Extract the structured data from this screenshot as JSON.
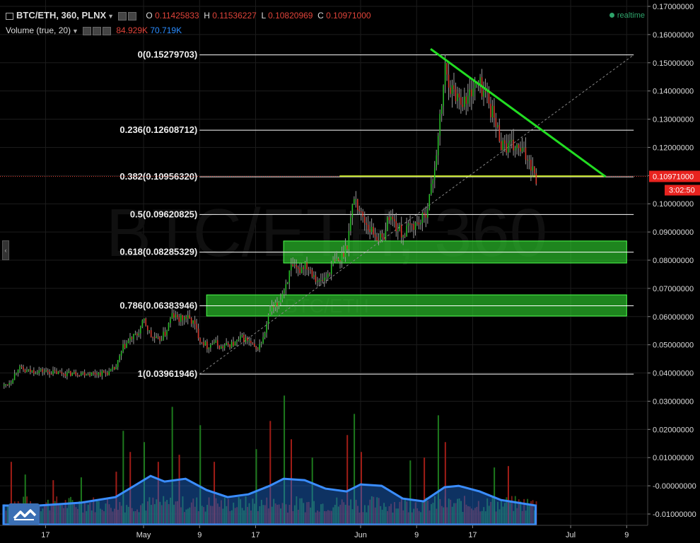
{
  "header": {
    "symbol": "BTC/ETH, 360, PLNX",
    "open_label": "O",
    "open": "0.11425833",
    "high_label": "H",
    "high": "0.11536227",
    "low_label": "L",
    "low": "0.10820969",
    "close_label": "C",
    "close": "0.10971000",
    "volume_label": "Volume (true, 20)",
    "volume_value": "84.929K",
    "volume_ma": "70.719K",
    "realtime": "realtime"
  },
  "watermark": {
    "main": "BTC/ETH, 360",
    "sub": "BTC/ETH"
  },
  "price_badge": {
    "price": "0.10971000",
    "countdown": "3:02:50"
  },
  "colors": {
    "up": "#27c227",
    "down": "#e03b30",
    "fib_line": "#ffffff",
    "trend": "#22dd22",
    "zone": "#2ecc2e",
    "price_line": "#e03b30",
    "volume_area": "#1e6fd9"
  },
  "chart_data": {
    "type": "candlestick",
    "y_axis": {
      "ticks": [
        "0.17000000",
        "0.16000000",
        "0.15000000",
        "0.14000000",
        "0.13000000",
        "0.12000000",
        "0.11000000",
        "0.10000000",
        "0.09000000",
        "0.08000000",
        "0.07000000",
        "0.06000000",
        "0.05000000",
        "0.04000000",
        "0.03000000",
        "0.02000000",
        "0.01000000",
        "-0.00000000",
        "-0.01000000"
      ],
      "range": [
        -0.01,
        0.17
      ]
    },
    "x_axis": {
      "ticks": [
        "17",
        "May",
        "9",
        "17",
        "Jun",
        "9",
        "17",
        "Jul",
        "9"
      ],
      "tick_dates": [
        "2016-04-17",
        "2016-05-01",
        "2016-05-09",
        "2016-05-17",
        "2016-06-01",
        "2016-06-09",
        "2016-06-17",
        "2016-07-01",
        "2016-07-09"
      ],
      "range": [
        "2016-04-11",
        "2016-07-12"
      ]
    },
    "fib_levels": [
      {
        "label": "0(0.15279703)",
        "value": 0.15279703
      },
      {
        "label": "0.236(0.12608712)",
        "value": 0.12608712
      },
      {
        "label": "0.382(0.10956320)",
        "value": 0.1095632
      },
      {
        "label": "0.5(0.09620825)",
        "value": 0.09620825
      },
      {
        "label": "0.618(0.08285329)",
        "value": 0.08285329
      },
      {
        "label": "0.786(0.06383946)",
        "value": 0.06383946
      },
      {
        "label": "1(0.03961946)",
        "value": 0.03961946
      }
    ],
    "fib_span": [
      "2016-05-09",
      "2016-07-10"
    ],
    "diagonal": {
      "from": [
        "2016-05-09",
        0.0396
      ],
      "to": [
        "2016-07-10",
        0.1528
      ]
    },
    "trendline": {
      "from": [
        "2016-06-11",
        0.1549
      ],
      "to": [
        "2016-07-06",
        0.1096
      ]
    },
    "support_line": {
      "from": [
        "2016-05-29",
        0.1098
      ],
      "to": [
        "2016-07-06",
        0.1098
      ]
    },
    "zones": [
      {
        "from": "2016-05-21",
        "to": "2016-07-09",
        "low": 0.079,
        "high": 0.0868
      },
      {
        "from": "2016-05-10",
        "to": "2016-07-09",
        "low": 0.0602,
        "high": 0.0677
      }
    ],
    "price_path": [
      [
        "2016-04-11",
        0.0355
      ],
      [
        "2016-04-12",
        0.0372
      ],
      [
        "2016-04-13",
        0.042
      ],
      [
        "2016-04-14",
        0.0405
      ],
      [
        "2016-04-16",
        0.0408
      ],
      [
        "2016-04-18",
        0.0402
      ],
      [
        "2016-04-20",
        0.0398
      ],
      [
        "2016-04-22",
        0.04
      ],
      [
        "2016-04-24",
        0.0398
      ],
      [
        "2016-04-26",
        0.0402
      ],
      [
        "2016-04-27",
        0.042
      ],
      [
        "2016-04-28",
        0.049
      ],
      [
        "2016-04-29",
        0.052
      ],
      [
        "2016-04-30",
        0.0535
      ],
      [
        "2016-05-01",
        0.0585
      ],
      [
        "2016-05-02",
        0.053
      ],
      [
        "2016-05-03",
        0.0515
      ],
      [
        "2016-05-04",
        0.054
      ],
      [
        "2016-05-05",
        0.0605
      ],
      [
        "2016-05-06",
        0.059
      ],
      [
        "2016-05-07",
        0.0598
      ],
      [
        "2016-05-08",
        0.058
      ],
      [
        "2016-05-09",
        0.052
      ],
      [
        "2016-05-10",
        0.0495
      ],
      [
        "2016-05-11",
        0.051
      ],
      [
        "2016-05-12",
        0.049
      ],
      [
        "2016-05-13",
        0.05
      ],
      [
        "2016-05-14",
        0.0505
      ],
      [
        "2016-05-15",
        0.0525
      ],
      [
        "2016-05-16",
        0.051
      ],
      [
        "2016-05-17",
        0.048
      ],
      [
        "2016-05-18",
        0.052
      ],
      [
        "2016-05-19",
        0.062
      ],
      [
        "2016-05-20",
        0.064
      ],
      [
        "2016-05-21",
        0.07
      ],
      [
        "2016-05-22",
        0.077
      ],
      [
        "2016-05-23",
        0.076
      ],
      [
        "2016-05-24",
        0.079
      ],
      [
        "2016-05-25",
        0.076
      ],
      [
        "2016-05-26",
        0.072
      ],
      [
        "2016-05-27",
        0.074
      ],
      [
        "2016-05-28",
        0.079
      ],
      [
        "2016-05-29",
        0.08
      ],
      [
        "2016-05-30",
        0.086
      ],
      [
        "2016-05-31",
        0.103
      ],
      [
        "2016-06-01",
        0.096
      ],
      [
        "2016-06-02",
        0.092
      ],
      [
        "2016-06-03",
        0.089
      ],
      [
        "2016-06-04",
        0.087
      ],
      [
        "2016-06-05",
        0.096
      ],
      [
        "2016-06-06",
        0.092
      ],
      [
        "2016-06-07",
        0.089
      ],
      [
        "2016-06-08",
        0.092
      ],
      [
        "2016-06-09",
        0.093
      ],
      [
        "2016-06-10",
        0.095
      ],
      [
        "2016-06-11",
        0.105
      ],
      [
        "2016-06-12",
        0.123
      ],
      [
        "2016-06-13",
        0.148
      ],
      [
        "2016-06-14",
        0.14
      ],
      [
        "2016-06-15",
        0.138
      ],
      [
        "2016-06-16",
        0.136
      ],
      [
        "2016-06-17",
        0.142
      ],
      [
        "2016-06-18",
        0.142
      ],
      [
        "2016-06-19",
        0.138
      ],
      [
        "2016-06-20",
        0.13
      ],
      [
        "2016-06-21",
        0.122
      ],
      [
        "2016-06-22",
        0.12
      ],
      [
        "2016-06-23",
        0.12
      ],
      [
        "2016-06-24",
        0.118
      ],
      [
        "2016-06-25",
        0.116
      ],
      [
        "2016-06-26",
        0.1097
      ]
    ],
    "volume_bars": [
      [
        "2016-04-12",
        0.0085
      ],
      [
        "2016-04-14",
        0.004
      ],
      [
        "2016-04-18",
        0.002
      ],
      [
        "2016-04-22",
        0.003
      ],
      [
        "2016-04-27",
        0.005
      ],
      [
        "2016-04-28",
        0.0195
      ],
      [
        "2016-04-29",
        0.012
      ],
      [
        "2016-05-01",
        0.0155
      ],
      [
        "2016-05-03",
        0.0085
      ],
      [
        "2016-05-05",
        0.028
      ],
      [
        "2016-05-06",
        0.011
      ],
      [
        "2016-05-09",
        0.0215
      ],
      [
        "2016-05-11",
        0.0085
      ],
      [
        "2016-05-17",
        0.013
      ],
      [
        "2016-05-19",
        0.023
      ],
      [
        "2016-05-21",
        0.032
      ],
      [
        "2016-05-22",
        0.0165
      ],
      [
        "2016-05-25",
        0.01
      ],
      [
        "2016-05-30",
        0.018
      ],
      [
        "2016-05-31",
        0.0255
      ],
      [
        "2016-06-01",
        0.012
      ],
      [
        "2016-06-08",
        0.009
      ],
      [
        "2016-06-10",
        0.01
      ],
      [
        "2016-06-12",
        0.025
      ],
      [
        "2016-06-13",
        0.0155
      ],
      [
        "2016-06-20",
        0.0065
      ],
      [
        "2016-06-22",
        0.007
      ]
    ],
    "volume_ma": [
      [
        "2016-04-11",
        -0.007
      ],
      [
        "2016-04-16",
        -0.007
      ],
      [
        "2016-04-22",
        -0.006
      ],
      [
        "2016-04-27",
        -0.004
      ],
      [
        "2016-04-30",
        0.0005
      ],
      [
        "2016-05-02",
        0.0035
      ],
      [
        "2016-05-04",
        0.0015
      ],
      [
        "2016-05-07",
        0.0025
      ],
      [
        "2016-05-10",
        -0.0015
      ],
      [
        "2016-05-13",
        -0.004
      ],
      [
        "2016-05-16",
        -0.003
      ],
      [
        "2016-05-19",
        0.0
      ],
      [
        "2016-05-21",
        0.0025
      ],
      [
        "2016-05-24",
        0.002
      ],
      [
        "2016-05-27",
        -0.001
      ],
      [
        "2016-05-30",
        -0.002
      ],
      [
        "2016-06-01",
        0.0005
      ],
      [
        "2016-06-04",
        0.0
      ],
      [
        "2016-06-07",
        -0.0045
      ],
      [
        "2016-06-10",
        -0.0055
      ],
      [
        "2016-06-13",
        -0.0005
      ],
      [
        "2016-06-15",
        0.0
      ],
      [
        "2016-06-18",
        -0.002
      ],
      [
        "2016-06-21",
        -0.005
      ],
      [
        "2016-06-26",
        -0.007
      ]
    ]
  }
}
